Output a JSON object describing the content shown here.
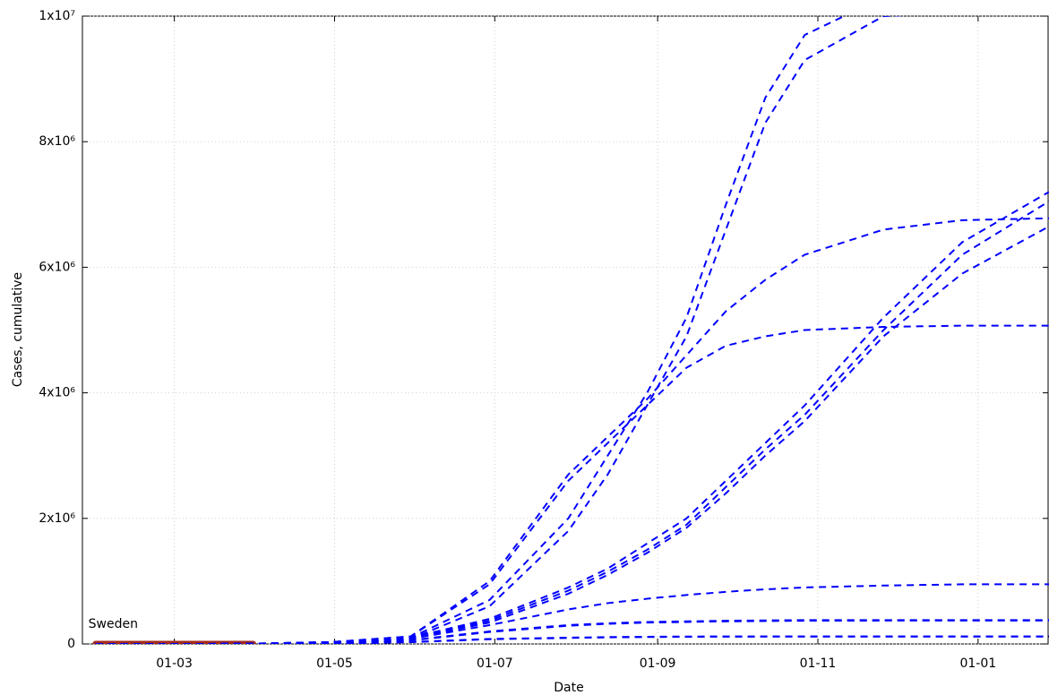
{
  "chart_data": {
    "type": "line",
    "x_label": "Date",
    "y_label": "Cases, cumulative",
    "x": [
      -30,
      0,
      12,
      30,
      60,
      90,
      120,
      150,
      165,
      180,
      195,
      210,
      225,
      240,
      270,
      300,
      333
    ],
    "xlim": [
      -35,
      333
    ],
    "xticks": [
      {
        "value": 0,
        "label": "01-03"
      },
      {
        "value": 61,
        "label": "01-05"
      },
      {
        "value": 122,
        "label": "01-07"
      },
      {
        "value": 184,
        "label": "01-09"
      },
      {
        "value": 245,
        "label": "01-11"
      },
      {
        "value": 306,
        "label": "01-01"
      }
    ],
    "ylim": [
      0,
      10000000
    ],
    "yticks": [
      0,
      {
        "value": 2000000,
        "label": "2x10⁶"
      },
      {
        "value": 4000000,
        "label": "4x10⁶"
      },
      {
        "value": 6000000,
        "label": "6x10⁶"
      },
      {
        "value": 8000000,
        "label": "8x10⁶"
      },
      {
        "value": 10000000,
        "label": "1x10⁷"
      }
    ],
    "grid": true,
    "series": [
      {
        "name": "Sweden",
        "color": "#a52a1a",
        "style": "solid",
        "values": [
          0,
          0,
          0,
          0,
          null,
          null,
          null,
          null,
          null,
          null,
          null,
          null,
          null,
          null,
          null,
          null,
          null
        ]
      },
      {
        "color": "#0000ff",
        "style": "dashed",
        "values": [
          0,
          0,
          0,
          5000,
          30000,
          100000,
          700000,
          2000000,
          3000000,
          4000000,
          5200000,
          7000000,
          8700000,
          9700000,
          10300000,
          10400000,
          10400000
        ]
      },
      {
        "color": "#0000ff",
        "style": "dashed",
        "values": [
          0,
          0,
          0,
          5000,
          25000,
          80000,
          600000,
          1800000,
          2700000,
          3800000,
          4900000,
          6600000,
          8300000,
          9300000,
          10000000,
          10050000,
          10050000
        ]
      },
      {
        "color": "#0000ff",
        "style": "dashed",
        "values": [
          0,
          0,
          0,
          5000,
          30000,
          120000,
          1000000,
          2700000,
          3300000,
          3900000,
          4600000,
          5300000,
          5800000,
          6200000,
          6600000,
          6750000,
          6780000
        ]
      },
      {
        "color": "#0000ff",
        "style": "dashed",
        "values": [
          0,
          0,
          0,
          5000,
          30000,
          120000,
          950000,
          2600000,
          3200000,
          3800000,
          4400000,
          4750000,
          4900000,
          5000000,
          5050000,
          5070000,
          5070000
        ]
      },
      {
        "color": "#0000ff",
        "style": "dashed",
        "values": [
          0,
          0,
          0,
          3000,
          15000,
          100000,
          400000,
          900000,
          1200000,
          1600000,
          2000000,
          2600000,
          3200000,
          3800000,
          5200000,
          6400000,
          7200000
        ]
      },
      {
        "color": "#0000ff",
        "style": "dashed",
        "values": [
          0,
          0,
          0,
          3000,
          14000,
          95000,
          370000,
          850000,
          1150000,
          1500000,
          1900000,
          2500000,
          3100000,
          3650000,
          5000000,
          6200000,
          7050000
        ]
      },
      {
        "color": "#0000ff",
        "style": "dashed",
        "values": [
          0,
          0,
          0,
          3000,
          13000,
          90000,
          340000,
          800000,
          1100000,
          1450000,
          1850000,
          2400000,
          3000000,
          3550000,
          4900000,
          5900000,
          6650000
        ]
      },
      {
        "color": "#0000ff",
        "style": "dashed",
        "values": [
          0,
          0,
          0,
          3000,
          12000,
          80000,
          300000,
          550000,
          650000,
          720000,
          780000,
          830000,
          870000,
          900000,
          930000,
          950000,
          950000
        ]
      },
      {
        "color": "#0000ff",
        "style": "dashed",
        "values": [
          0,
          0,
          0,
          2000,
          10000,
          60000,
          200000,
          300000,
          330000,
          350000,
          360000,
          370000,
          375000,
          380000,
          380000,
          380000,
          380000
        ]
      },
      {
        "color": "#0000ff",
        "style": "dashed",
        "values": [
          0,
          0,
          0,
          2000,
          9000,
          55000,
          190000,
          290000,
          320000,
          340000,
          350000,
          360000,
          365000,
          370000,
          372000,
          373000,
          373000
        ]
      },
      {
        "color": "#0000ff",
        "style": "dashed",
        "values": [
          0,
          0,
          0,
          1000,
          5000,
          30000,
          80000,
          100000,
          110000,
          115000,
          118000,
          120000,
          120000,
          120000,
          120000,
          120000,
          120000
        ]
      },
      {
        "color": "#0000ff",
        "style": "dashed",
        "values": [
          0,
          0,
          0,
          1000,
          4500,
          28000,
          75000,
          95000,
          105000,
          110000,
          114000,
          116000,
          117000,
          117000,
          117000,
          117000,
          117000
        ]
      }
    ]
  }
}
